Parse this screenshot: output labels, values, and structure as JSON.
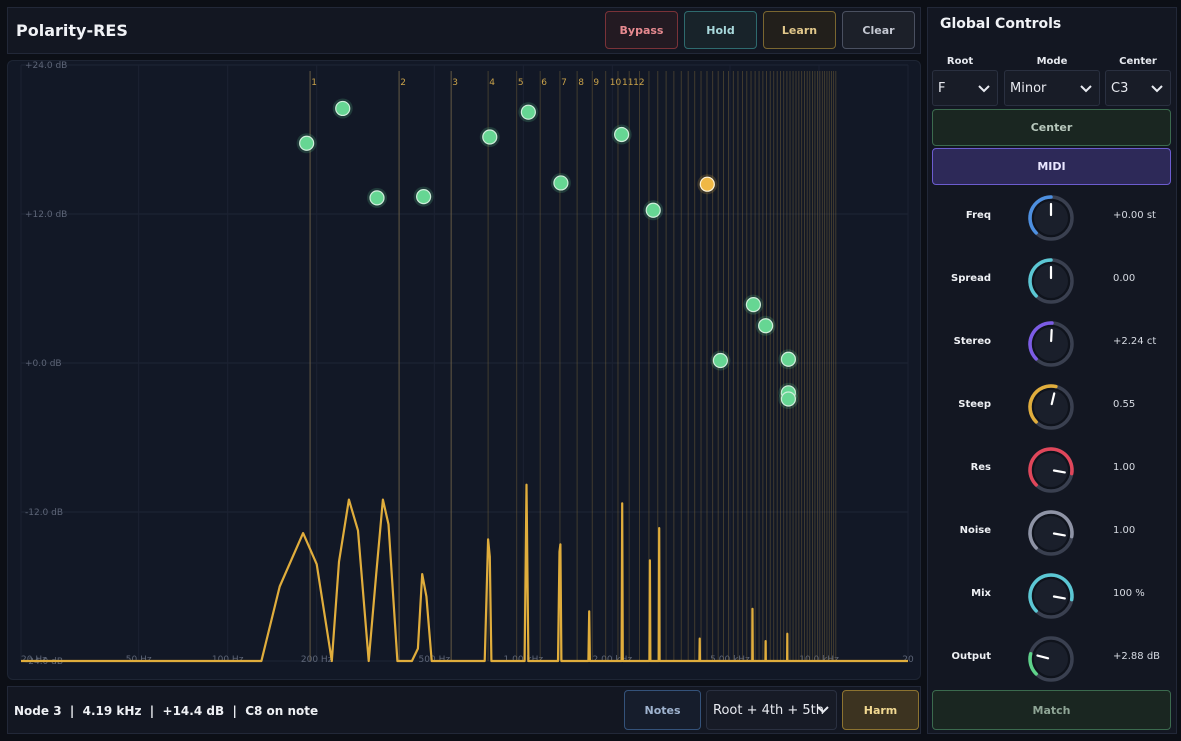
{
  "app": {
    "title": "Polarity-RES"
  },
  "toolbar": {
    "bypass": "Bypass",
    "hold": "Hold",
    "learn": "Learn",
    "clear": "Clear"
  },
  "graph": {
    "db_labels": [
      "+24.0 dB",
      "+12.0 dB",
      "+0.0 dB",
      "-12.0 dB",
      "-24.0 dB"
    ],
    "db_values": [
      24,
      12,
      0,
      -12,
      -24
    ],
    "freq_labels": [
      {
        "hz": 20,
        "label": "20 Hz"
      },
      {
        "hz": 50,
        "label": "50 Hz"
      },
      {
        "hz": 100,
        "label": "100 Hz"
      },
      {
        "hz": 200,
        "label": "200 Hz"
      },
      {
        "hz": 500,
        "label": "500 Hz"
      },
      {
        "hz": 1000,
        "label": "1.00 kHz"
      },
      {
        "hz": 2000,
        "label": "2.00 kHz"
      },
      {
        "hz": 5000,
        "label": "5.00 kHz"
      },
      {
        "hz": 10000,
        "label": "10.0 kHz"
      },
      {
        "hz": 20000,
        "label": "20"
      }
    ],
    "harmonic_base_hz": 190,
    "harmonic_count": 60,
    "harmonic_labels": [
      "1",
      "2",
      "3",
      "4",
      "5",
      "6",
      "7",
      "8",
      "9",
      "10",
      "11",
      "12"
    ],
    "highlight_harmonics": [
      1,
      2,
      3
    ],
    "nodes": [
      {
        "hz": 185,
        "db": 17.7,
        "selected": false
      },
      {
        "hz": 245,
        "db": 20.5,
        "selected": false
      },
      {
        "hz": 320,
        "db": 13.3,
        "selected": false
      },
      {
        "hz": 460,
        "db": 13.4,
        "selected": false
      },
      {
        "hz": 770,
        "db": 18.2,
        "selected": false
      },
      {
        "hz": 1040,
        "db": 20.2,
        "selected": false
      },
      {
        "hz": 1340,
        "db": 14.5,
        "selected": false
      },
      {
        "hz": 2150,
        "db": 18.4,
        "selected": false
      },
      {
        "hz": 2750,
        "db": 12.3,
        "selected": false
      },
      {
        "hz": 4190,
        "db": 14.4,
        "selected": true
      },
      {
        "hz": 4640,
        "db": 0.2,
        "selected": false
      },
      {
        "hz": 6000,
        "db": 4.7,
        "selected": false
      },
      {
        "hz": 6600,
        "db": 3.0,
        "selected": false
      },
      {
        "hz": 7880,
        "db": 0.3,
        "selected": false
      },
      {
        "hz": 7880,
        "db": -2.4,
        "selected": false
      },
      {
        "hz": 7880,
        "db": -2.9,
        "selected": false
      }
    ],
    "spectrum": [
      [
        20,
        -24
      ],
      [
        130,
        -24
      ],
      [
        150,
        -18
      ],
      [
        180,
        -13.7
      ],
      [
        200,
        -16.2
      ],
      [
        225,
        -24
      ],
      [
        238,
        -16
      ],
      [
        257,
        -11
      ],
      [
        276,
        -13.5
      ],
      [
        300,
        -24
      ],
      [
        318,
        -17
      ],
      [
        335,
        -11
      ],
      [
        350,
        -13
      ],
      [
        375,
        -24
      ],
      [
        420,
        -24
      ],
      [
        440,
        -23
      ],
      [
        455,
        -17
      ],
      [
        470,
        -18.8
      ],
      [
        490,
        -24
      ],
      [
        740,
        -24
      ],
      [
        760,
        -14.2
      ],
      [
        770,
        -15.6
      ],
      [
        780,
        -24
      ],
      [
        1010,
        -24
      ],
      [
        1025,
        -9.8
      ],
      [
        1040,
        -24
      ],
      [
        1310,
        -24
      ],
      [
        1325,
        -15.2
      ],
      [
        1335,
        -14.6
      ],
      [
        1345,
        -24
      ],
      [
        1660,
        -24
      ],
      [
        1670,
        -20
      ],
      [
        1680,
        -24
      ],
      [
        2150,
        -24
      ],
      [
        2160,
        -11.3
      ],
      [
        2170,
        -24
      ],
      [
        2670,
        -24
      ],
      [
        2680,
        -15.9
      ],
      [
        2690,
        -24
      ],
      [
        2870,
        -24
      ],
      [
        2880,
        -13.3
      ],
      [
        2890,
        -24
      ],
      [
        3940,
        -24
      ],
      [
        3950,
        -22.2
      ],
      [
        3960,
        -24
      ],
      [
        5950,
        -24
      ],
      [
        5960,
        -19.8
      ],
      [
        5970,
        -24
      ],
      [
        6590,
        -24
      ],
      [
        6600,
        -22.4
      ],
      [
        6610,
        -24
      ],
      [
        7800,
        -24
      ],
      [
        7810,
        -21.8
      ],
      [
        7820,
        -24
      ],
      [
        20000,
        -24
      ]
    ]
  },
  "status": {
    "text": "Node 3  |  4.19 kHz  |  +14.4 dB  |  C8 on note",
    "notes": "Notes",
    "chord": "Root + 4th + 5th",
    "harm": "Harm"
  },
  "global": {
    "title": "Global Controls",
    "root_label": "Root",
    "root_value": "F",
    "mode_label": "Mode",
    "mode_value": "Minor",
    "center_label": "Center",
    "center_value": "C3",
    "center_button": "Center",
    "midi_button": "MIDI",
    "knobs": [
      {
        "label": "Freq",
        "value": "+0.00 st",
        "level": 0.5,
        "color": "#4d8fe0"
      },
      {
        "label": "Spread",
        "value": "0.00",
        "level": 0.5,
        "color": "#5bc7d4"
      },
      {
        "label": "Stereo",
        "value": "+2.24 ct",
        "level": 0.51,
        "color": "#7c5ce6"
      },
      {
        "label": "Steep",
        "value": "0.55",
        "level": 0.55,
        "color": "#e0ad3c"
      },
      {
        "label": "Res",
        "value": "1.00",
        "level": 0.87,
        "color": "#e0465a"
      },
      {
        "label": "Noise",
        "value": "1.00",
        "level": 0.87,
        "color": "#8f94a6"
      },
      {
        "label": "Mix",
        "value": "100 %",
        "level": 0.87,
        "color": "#5bc7d4"
      },
      {
        "label": "Output",
        "value": "+2.88 dB",
        "level": 0.22,
        "color": "#5ed38a"
      }
    ],
    "match_button": "Match"
  }
}
